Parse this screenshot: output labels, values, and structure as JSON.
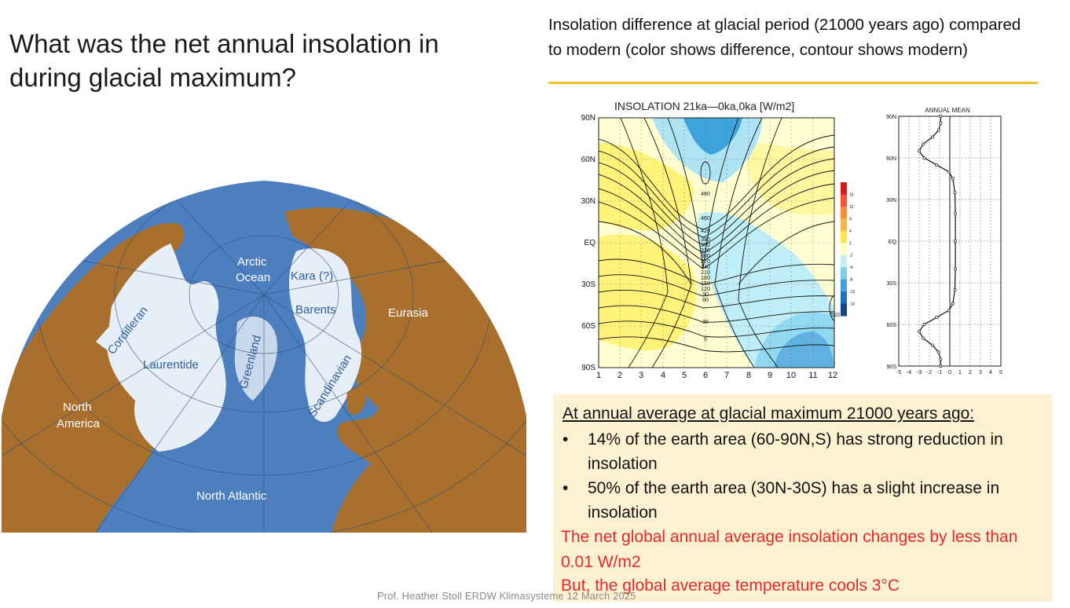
{
  "slide": {
    "title": "What was the net annual insolation in during glacial maximum?",
    "right_heading": "Insolation difference at glacial period (21000 years ago) compared to modern (color shows difference, contour shows modern)",
    "footer": "Prof. Heather Stoll   ERDW  Klimasysteme 12 March 2025"
  },
  "map": {
    "labels": {
      "arctic": "Arctic",
      "ocean": "Ocean",
      "kara": "Kara (?)",
      "barents": "Barents",
      "eurasia": "Eurasia",
      "cordilleran": "Cordilleran",
      "laurentide": "Laurentide",
      "greenland": "Greenland",
      "scandinavian": "Scandinavian",
      "north": "North",
      "america": "America",
      "north_atlantic": "North Atlantic"
    },
    "colors": {
      "ocean": "#4d7fbe",
      "land": "#a8702c",
      "ice": "#e6eef7"
    }
  },
  "contour_chart": {
    "title": "INSOLATION  21ka—0ka,0ka [W/m2]",
    "y_ticks": [
      "90N",
      "60N",
      "30N",
      "EQ",
      "30S",
      "60S",
      "90S"
    ],
    "x_ticks": [
      "1",
      "2",
      "3",
      "4",
      "5",
      "6",
      "7",
      "8",
      "9",
      "10",
      "11",
      "12"
    ],
    "contour_labels": [
      "480",
      "460",
      "420",
      "390",
      "360",
      "330",
      "300",
      "270",
      "240",
      "210",
      "180",
      "150",
      "120",
      "90",
      "60",
      "30",
      "0",
      "510"
    ],
    "colorbar_ticks": [
      "16",
      "12",
      "8",
      "4",
      "2",
      "-2",
      "-4",
      "-8",
      "-12",
      "-16"
    ],
    "colorbar_colors": [
      "#d7191c",
      "#f1542e",
      "#fd8d3c",
      "#fdb446",
      "#fee34f",
      "#ffffbf",
      "#c7eef7",
      "#7ecfee",
      "#3ea3dd",
      "#1f6fc0",
      "#12448f"
    ]
  },
  "chart_data": {
    "type": "line",
    "title": "ANNUAL  MEAN",
    "x_ticks": [
      "-5",
      "-4",
      "-3",
      "-2",
      "-1",
      "0",
      "1",
      "2",
      "3",
      "4",
      "5"
    ],
    "y_ticks": [
      "90N",
      "60N",
      "30N",
      "EQ",
      "30S",
      "60S",
      "90S"
    ],
    "xlim": [
      -5,
      5
    ],
    "ylim": [
      -90,
      90
    ],
    "series": [
      {
        "x": [
          -0.9,
          -0.9,
          -1.1,
          -1.7,
          -2.6,
          -3.0,
          -2.5,
          -1.3,
          -0.1,
          0.3,
          0.5,
          0.55,
          0.55,
          0.55,
          0.5,
          0.3,
          -0.1,
          -1.3,
          -2.5,
          -3.0,
          -2.6,
          -1.7,
          -1.1,
          -0.9,
          -0.9
        ],
        "y": [
          90,
          85,
          80,
          75,
          70,
          65,
          60,
          55,
          50,
          45,
          35,
          20,
          0,
          -20,
          -35,
          -45,
          -50,
          -55,
          -60,
          -65,
          -70,
          -75,
          -80,
          -85,
          -90
        ]
      }
    ],
    "grid": true
  },
  "info": {
    "heading": "At annual average at glacial maximum  21000 years ago:",
    "bullet_symbol": "•",
    "bullets": [
      "14% of the earth area (60-90N,S) has strong reduction in  insolation",
      "50% of the earth area (30N-30S) has a slight increase in insolation"
    ],
    "red_1": "The net global annual average insolation changes by less than 0.01 W/m2",
    "red_2": "But, the global average temperature cools 3°C"
  }
}
